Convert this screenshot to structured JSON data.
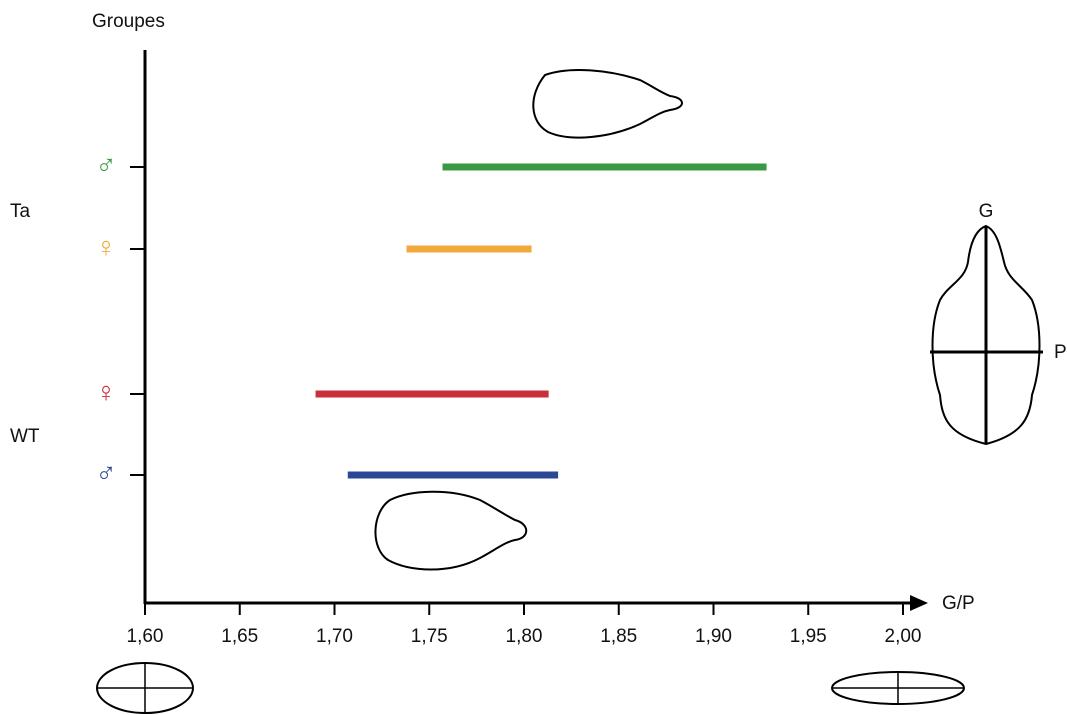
{
  "chart_data": {
    "type": "range",
    "ylabel": "Groupes",
    "xlabel": "G/P",
    "categories": [
      "♂",
      "♀",
      "♀",
      "♂"
    ],
    "groups": [
      "Ta",
      "WT"
    ],
    "starts": [
      1.757,
      1.738,
      1.69,
      1.707
    ],
    "ends": [
      1.928,
      1.804,
      1.813,
      1.818
    ],
    "colors": [
      "#3a9a44",
      "#f0a93a",
      "#c8313a",
      "#2a4894"
    ],
    "xlim": [
      1.6,
      2.0
    ],
    "xticks": [
      {
        "value": 1.6,
        "label": "1,60"
      },
      {
        "value": 1.65,
        "label": "1,65"
      },
      {
        "value": 1.7,
        "label": "1,70"
      },
      {
        "value": 1.75,
        "label": "1,75"
      },
      {
        "value": 1.8,
        "label": "1,80"
      },
      {
        "value": 1.85,
        "label": "1,85"
      },
      {
        "value": 1.9,
        "label": "1,90"
      },
      {
        "value": 1.95,
        "label": "1,95"
      },
      {
        "value": 2.0,
        "label": "2,00"
      }
    ],
    "diagram_labels": [
      "G",
      "P"
    ]
  }
}
